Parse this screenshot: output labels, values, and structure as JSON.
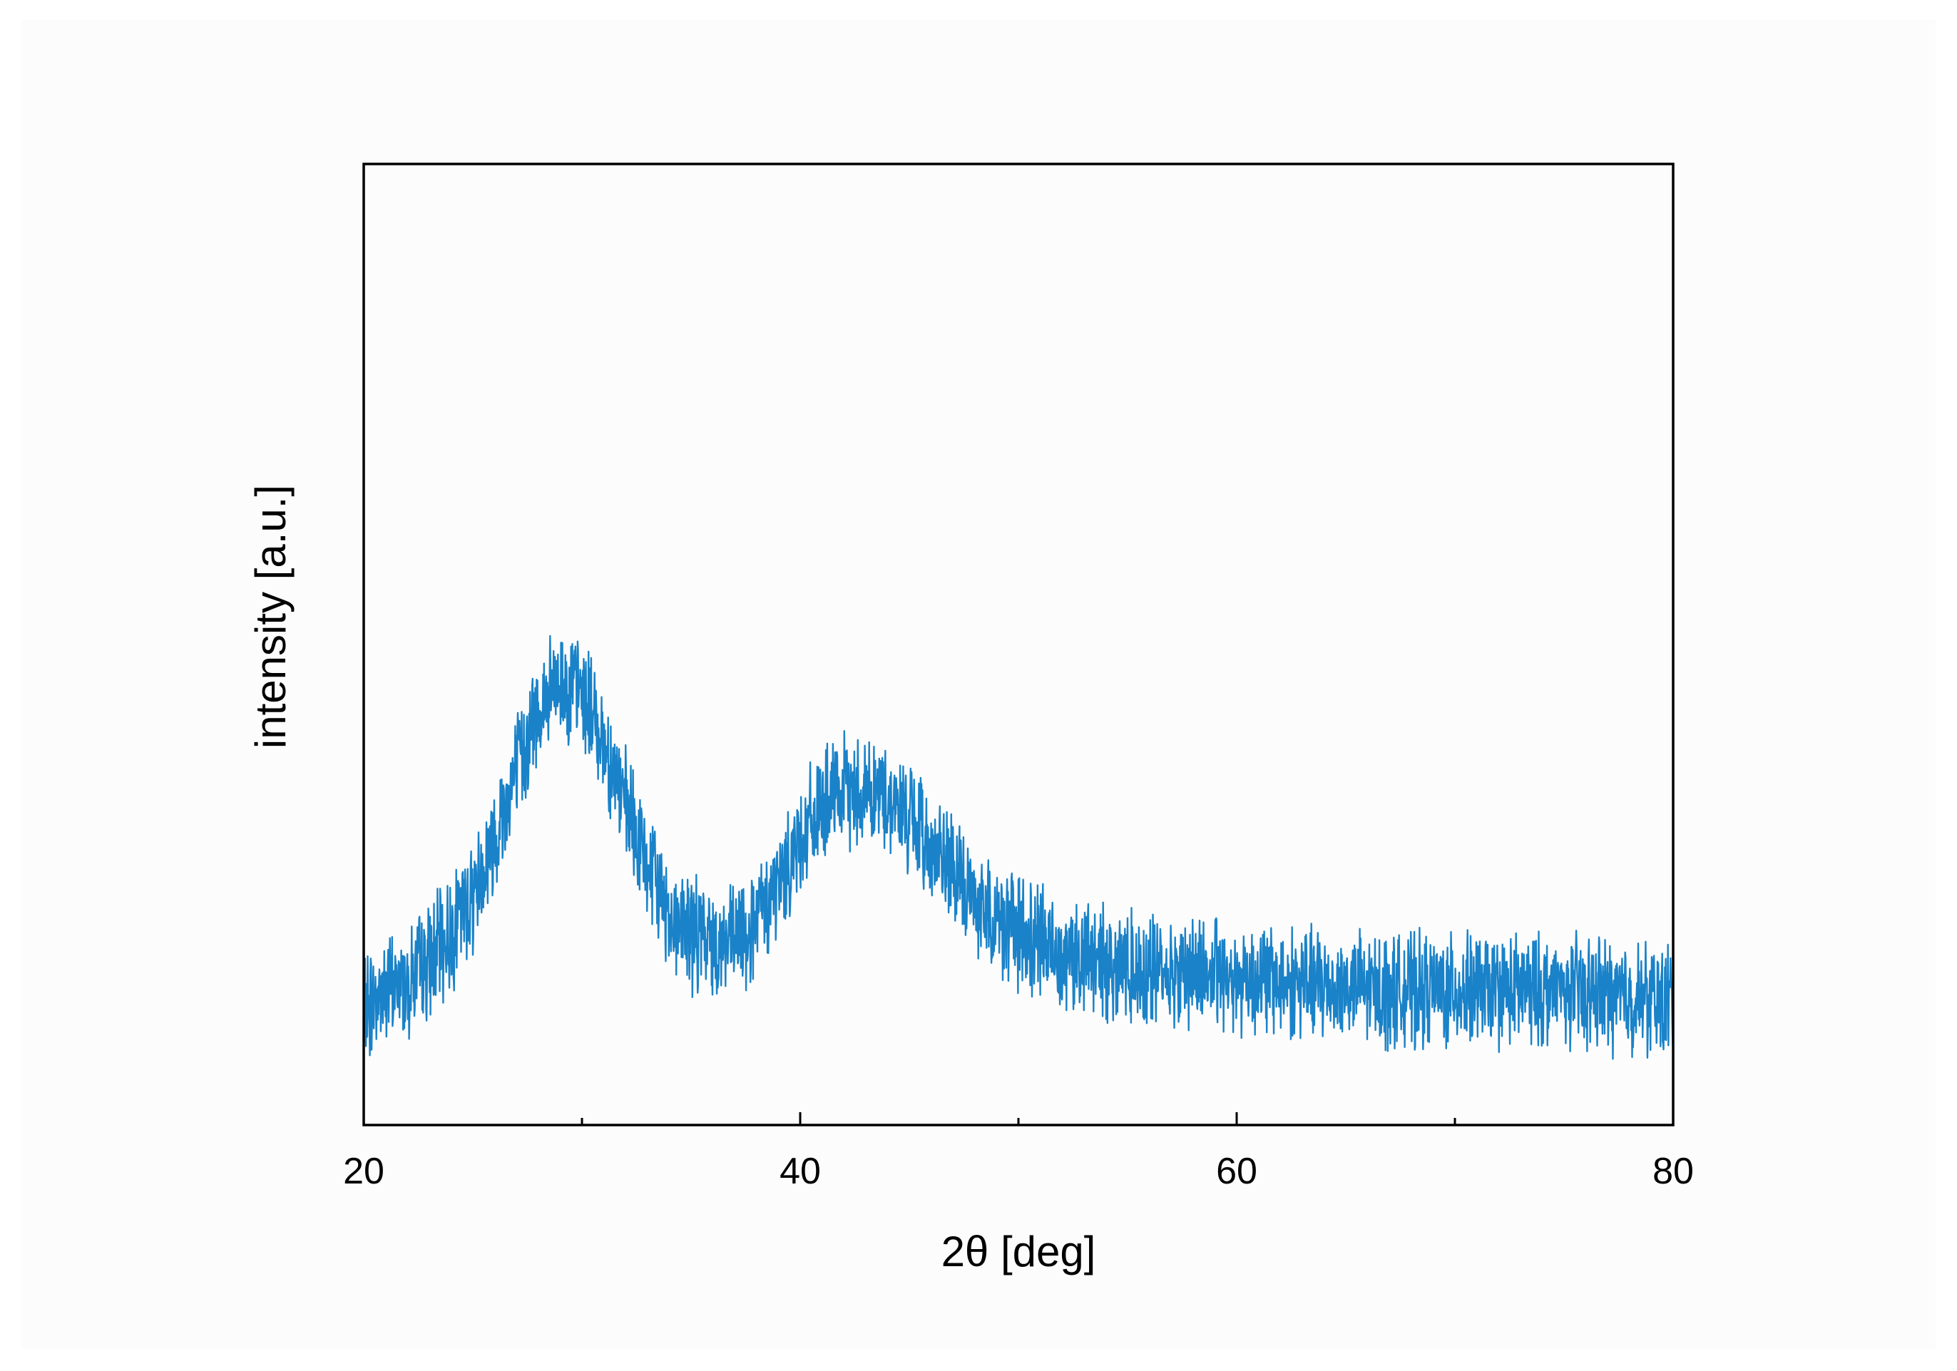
{
  "chart_data": {
    "type": "line",
    "title": "",
    "xlabel": "2θ [deg]",
    "ylabel": "intensity [a.u.]",
    "xlim": [
      20,
      80
    ],
    "ylim": [
      0,
      100
    ],
    "y_tick_labels_shown": false,
    "grid": false,
    "legend": "none",
    "x_ticks": [
      20,
      40,
      60,
      80
    ],
    "x_tick_labels": [
      "20",
      "40",
      "60",
      "80"
    ],
    "x_minor_ticks": [
      30,
      50,
      70
    ],
    "line_color": "#1a82c8",
    "noise_amplitude": 4.5,
    "series": [
      {
        "x": [
          20,
          21,
          22,
          23,
          24,
          25,
          26,
          27,
          28,
          29,
          30,
          31,
          32,
          33,
          34,
          35,
          36,
          37,
          38,
          39,
          40,
          41,
          42,
          43,
          44,
          45,
          46,
          47,
          48,
          49,
          50,
          51,
          52,
          53,
          54,
          55,
          56,
          57,
          58,
          59,
          60,
          61,
          62,
          63,
          64,
          65,
          66,
          67,
          68,
          69,
          70,
          71,
          72,
          73,
          74,
          75,
          76,
          77,
          78,
          79,
          80
        ],
        "y": [
          12,
          14,
          15,
          17,
          20,
          24,
          30,
          37,
          43,
          46,
          45,
          40,
          33,
          27,
          22,
          20,
          19,
          19,
          21,
          25,
          30,
          33,
          34.5,
          35,
          34,
          32,
          29,
          26,
          23.5,
          21.5,
          20,
          19,
          18,
          17.5,
          17,
          16.5,
          16,
          16,
          16,
          15.8,
          15.5,
          15.3,
          15,
          14.8,
          14.5,
          14.3,
          14.2,
          14,
          14,
          14,
          14,
          14,
          14,
          14,
          14,
          14,
          13.8,
          13.6,
          13.3,
          13,
          13
        ]
      }
    ]
  }
}
